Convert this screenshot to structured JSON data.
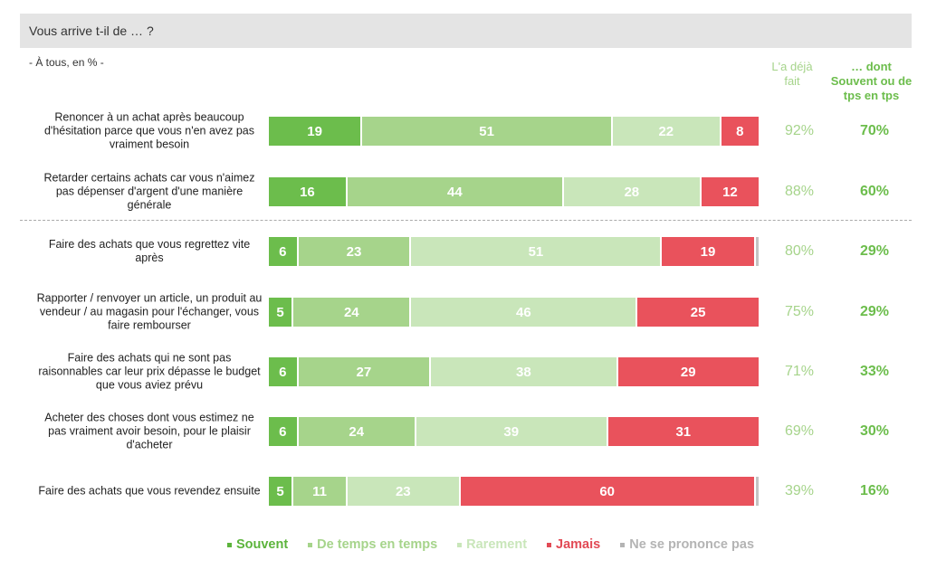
{
  "header": {
    "title": "Vous arrive t-il de … ?",
    "subtitle": "- À tous, en % -"
  },
  "columns": {
    "already": "L'a déjà fait",
    "often": "… dont Souvent ou de tps en tps"
  },
  "chart_data": {
    "type": "bar",
    "orientation": "horizontal",
    "stacked": true,
    "xlim": [
      0,
      100
    ],
    "colors": {
      "Souvent": "#6cbd4c",
      "De temps en temps": "#a6d48b",
      "Rarement": "#c9e6ba",
      "Jamais": "#e9525c",
      "Ne se prononce pas": "#c4c4c4"
    },
    "series_names": [
      "Souvent",
      "De temps en temps",
      "Rarement",
      "Jamais",
      "Ne se prononce pas"
    ],
    "rows": [
      {
        "label": "Renoncer à un achat après beaucoup d'hésitation parce que vous n'en avez pas vraiment besoin",
        "values": [
          19,
          51,
          22,
          8,
          0
        ],
        "already": "92%",
        "often": "70%"
      },
      {
        "label": "Retarder certains achats car vous n'aimez pas dépenser d'argent d'une manière générale",
        "values": [
          16,
          44,
          28,
          12,
          0
        ],
        "already": "88%",
        "often": "60%"
      },
      {
        "label": "Faire des achats que vous regrettez vite après",
        "values": [
          6,
          23,
          51,
          19,
          1
        ],
        "already": "80%",
        "often": "29%"
      },
      {
        "label": "Rapporter / renvoyer un article, un produit au vendeur / au magasin pour l'échanger, vous faire rembourser",
        "values": [
          5,
          24,
          46,
          25,
          0
        ],
        "already": "75%",
        "often": "29%"
      },
      {
        "label": "Faire des achats qui ne sont pas raisonnables car leur prix dépasse le budget que vous aviez prévu",
        "values": [
          6,
          27,
          38,
          29,
          0
        ],
        "already": "71%",
        "often": "33%"
      },
      {
        "label": "Acheter des choses dont vous estimez ne pas vraiment avoir besoin, pour le plaisir d'acheter",
        "values": [
          6,
          24,
          39,
          31,
          0
        ],
        "already": "69%",
        "often": "30%"
      },
      {
        "label": "Faire des achats que vous revendez ensuite",
        "values": [
          5,
          11,
          23,
          60,
          1
        ],
        "already": "39%",
        "often": "16%"
      }
    ]
  }
}
